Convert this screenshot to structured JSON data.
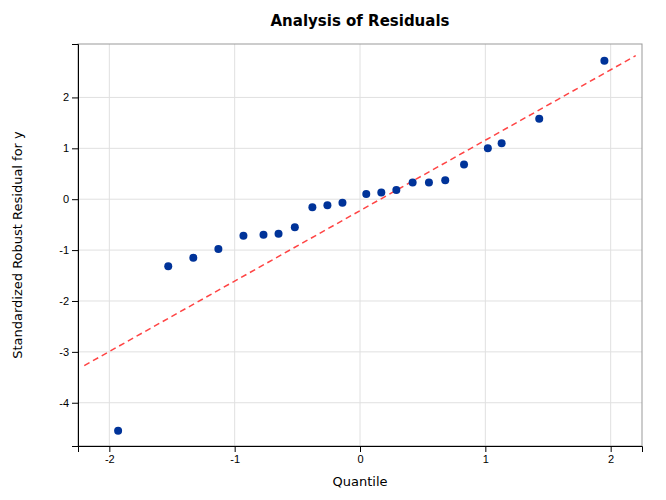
{
  "chart_data": {
    "type": "scatter",
    "title": "Analysis of Residuals",
    "xlabel": "Quantile",
    "ylabel": "Standardized Robust Residual for y",
    "xlim": [
      -2.25,
      2.25
    ],
    "ylim": [
      -4.85,
      3.05
    ],
    "xticks": [
      -2,
      -1,
      0,
      1,
      2
    ],
    "yticks": [
      -4,
      -3,
      -2,
      -1,
      0,
      1,
      2
    ],
    "grid": true,
    "series": [
      {
        "type": "scatter",
        "color": "#003399",
        "marker": "circle",
        "x": [
          -1.93,
          -1.53,
          -1.33,
          -1.13,
          -0.93,
          -0.77,
          -0.65,
          -0.52,
          -0.38,
          -0.26,
          -0.14,
          0.05,
          0.17,
          0.29,
          0.42,
          0.55,
          0.68,
          0.83,
          1.02,
          1.13,
          1.43,
          1.95
        ],
        "values": [
          -4.55,
          -1.32,
          -1.15,
          -0.98,
          -0.72,
          -0.7,
          -0.68,
          -0.55,
          -0.16,
          -0.12,
          -0.07,
          0.1,
          0.13,
          0.18,
          0.33,
          0.33,
          0.37,
          0.68,
          1.0,
          1.1,
          1.58,
          2.72
        ]
      },
      {
        "type": "line",
        "color": "#ff4444",
        "line_style": "dashed",
        "x": [
          -2.2,
          2.2
        ],
        "values": [
          -3.27,
          2.82
        ]
      }
    ]
  }
}
